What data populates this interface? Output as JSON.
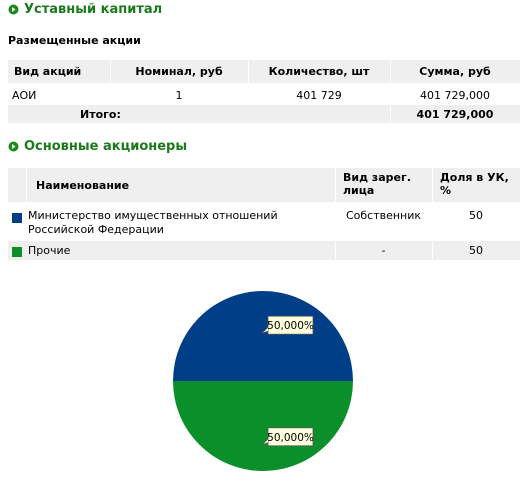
{
  "header": {
    "title": "Уставный капитал"
  },
  "shares": {
    "title": "Размещенные акции",
    "columns": [
      "Вид акций",
      "Номинал, руб",
      "Количество, шт",
      "Сумма, руб"
    ],
    "rows": [
      [
        "АОИ",
        "1",
        "401 729",
        "401 729,000"
      ]
    ],
    "total": {
      "label": "Итого:",
      "value": "401 729,000"
    }
  },
  "shareholders": {
    "title": "Основные акционеры",
    "columns": [
      "Наименование",
      "Вид зарег. лица",
      "Доля в УК, %"
    ],
    "rows": [
      [
        "Министерство имущественных отношений Российской Федерации",
        "Собственник",
        "50"
      ],
      [
        "Прочие",
        "-",
        "50"
      ]
    ]
  },
  "chart_data": {
    "type": "pie",
    "values": [
      50,
      50
    ],
    "value_labels": [
      "50,000%",
      "50,000%"
    ],
    "colors": [
      "#003f87",
      "#0b8f2b"
    ]
  }
}
